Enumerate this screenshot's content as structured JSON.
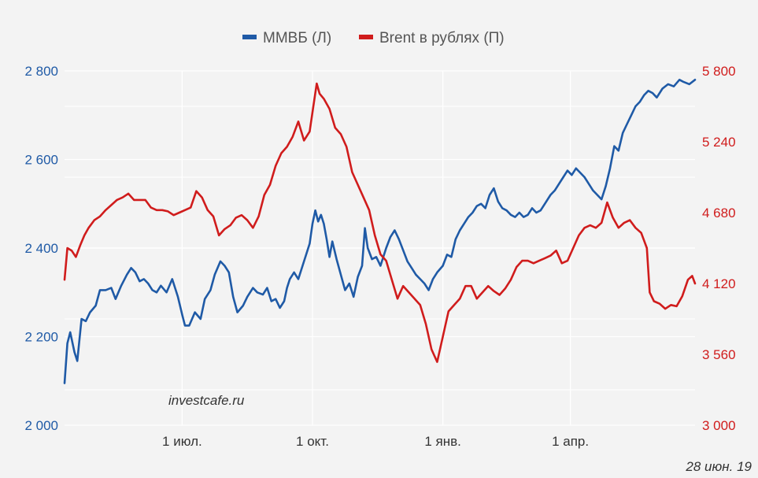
{
  "chart_data": {
    "type": "line",
    "legend_position": "top-center",
    "grid": true,
    "colors": {
      "left": "#1f5aa6",
      "right": "#d01c1c",
      "background": "#f3f3f3",
      "grid": "#ffffff"
    },
    "left_axis": {
      "ylim": [
        2000,
        2800
      ],
      "ticks": [
        2000,
        2200,
        2400,
        2600,
        2800
      ],
      "tick_labels": [
        "2 000",
        "2 200",
        "2 400",
        "2 600",
        "2 800"
      ]
    },
    "right_axis": {
      "ylim": [
        3000,
        5800
      ],
      "ticks": [
        3000,
        3560,
        4120,
        4680,
        5240,
        5800
      ],
      "tick_labels": [
        "3 000",
        "3 560",
        "4 120",
        "4 680",
        "5 240",
        "5 800"
      ]
    },
    "x_ticks": [
      {
        "label": "1 июл.",
        "date": "2018-07-01"
      },
      {
        "label": "1 окт.",
        "date": "2018-10-01"
      },
      {
        "label": "1 янв.",
        "date": "2019-01-01"
      },
      {
        "label": "1 апр.",
        "date": "2019-04-01"
      }
    ],
    "xlim": [
      "2018-04-09",
      "2019-06-28"
    ],
    "watermark": "investcafe.ru",
    "date_note": "28 июн. 19",
    "series": [
      {
        "name": "ММВБ (Л)",
        "axis": "left",
        "points": [
          [
            "2018-04-09",
            2095
          ],
          [
            "2018-04-11",
            2185
          ],
          [
            "2018-04-13",
            2210
          ],
          [
            "2018-04-16",
            2165
          ],
          [
            "2018-04-18",
            2145
          ],
          [
            "2018-04-21",
            2240
          ],
          [
            "2018-04-24",
            2235
          ],
          [
            "2018-04-27",
            2255
          ],
          [
            "2018-05-01",
            2270
          ],
          [
            "2018-05-04",
            2305
          ],
          [
            "2018-05-08",
            2305
          ],
          [
            "2018-05-12",
            2310
          ],
          [
            "2018-05-15",
            2285
          ],
          [
            "2018-05-19",
            2315
          ],
          [
            "2018-05-23",
            2340
          ],
          [
            "2018-05-26",
            2355
          ],
          [
            "2018-05-29",
            2345
          ],
          [
            "2018-06-01",
            2325
          ],
          [
            "2018-06-04",
            2330
          ],
          [
            "2018-06-07",
            2320
          ],
          [
            "2018-06-10",
            2305
          ],
          [
            "2018-06-13",
            2300
          ],
          [
            "2018-06-16",
            2315
          ],
          [
            "2018-06-20",
            2300
          ],
          [
            "2018-06-24",
            2330
          ],
          [
            "2018-06-28",
            2290
          ],
          [
            "2018-07-01",
            2250
          ],
          [
            "2018-07-03",
            2225
          ],
          [
            "2018-07-06",
            2225
          ],
          [
            "2018-07-10",
            2255
          ],
          [
            "2018-07-14",
            2240
          ],
          [
            "2018-07-17",
            2285
          ],
          [
            "2018-07-21",
            2305
          ],
          [
            "2018-07-24",
            2340
          ],
          [
            "2018-07-28",
            2370
          ],
          [
            "2018-07-31",
            2360
          ],
          [
            "2018-08-03",
            2345
          ],
          [
            "2018-08-06",
            2290
          ],
          [
            "2018-08-09",
            2255
          ],
          [
            "2018-08-13",
            2270
          ],
          [
            "2018-08-16",
            2290
          ],
          [
            "2018-08-20",
            2310
          ],
          [
            "2018-08-23",
            2300
          ],
          [
            "2018-08-27",
            2295
          ],
          [
            "2018-08-30",
            2310
          ],
          [
            "2018-09-02",
            2280
          ],
          [
            "2018-09-05",
            2285
          ],
          [
            "2018-09-08",
            2265
          ],
          [
            "2018-09-11",
            2280
          ],
          [
            "2018-09-13",
            2310
          ],
          [
            "2018-09-15",
            2330
          ],
          [
            "2018-09-18",
            2345
          ],
          [
            "2018-09-21",
            2330
          ],
          [
            "2018-09-24",
            2360
          ],
          [
            "2018-09-27",
            2390
          ],
          [
            "2018-09-29",
            2410
          ],
          [
            "2018-10-01",
            2455
          ],
          [
            "2018-10-03",
            2485
          ],
          [
            "2018-10-05",
            2460
          ],
          [
            "2018-10-07",
            2475
          ],
          [
            "2018-10-09",
            2455
          ],
          [
            "2018-10-11",
            2420
          ],
          [
            "2018-10-13",
            2380
          ],
          [
            "2018-10-15",
            2415
          ],
          [
            "2018-10-18",
            2375
          ],
          [
            "2018-10-21",
            2340
          ],
          [
            "2018-10-24",
            2305
          ],
          [
            "2018-10-27",
            2320
          ],
          [
            "2018-10-30",
            2290
          ],
          [
            "2018-11-02",
            2335
          ],
          [
            "2018-11-05",
            2360
          ],
          [
            "2018-11-07",
            2445
          ],
          [
            "2018-11-09",
            2400
          ],
          [
            "2018-11-12",
            2375
          ],
          [
            "2018-11-15",
            2380
          ],
          [
            "2018-11-18",
            2360
          ],
          [
            "2018-11-22",
            2400
          ],
          [
            "2018-11-25",
            2425
          ],
          [
            "2018-11-28",
            2440
          ],
          [
            "2018-12-01",
            2420
          ],
          [
            "2018-12-04",
            2395
          ],
          [
            "2018-12-07",
            2370
          ],
          [
            "2018-12-10",
            2355
          ],
          [
            "2018-12-13",
            2340
          ],
          [
            "2018-12-16",
            2330
          ],
          [
            "2018-12-19",
            2320
          ],
          [
            "2018-12-22",
            2305
          ],
          [
            "2018-12-25",
            2330
          ],
          [
            "2018-12-28",
            2345
          ],
          [
            "2019-01-01",
            2360
          ],
          [
            "2019-01-04",
            2385
          ],
          [
            "2019-01-07",
            2380
          ],
          [
            "2019-01-10",
            2420
          ],
          [
            "2019-01-13",
            2440
          ],
          [
            "2019-01-16",
            2455
          ],
          [
            "2019-01-19",
            2470
          ],
          [
            "2019-01-22",
            2480
          ],
          [
            "2019-01-25",
            2495
          ],
          [
            "2019-01-28",
            2500
          ],
          [
            "2019-01-31",
            2490
          ],
          [
            "2019-02-03",
            2520
          ],
          [
            "2019-02-06",
            2535
          ],
          [
            "2019-02-09",
            2505
          ],
          [
            "2019-02-12",
            2490
          ],
          [
            "2019-02-15",
            2485
          ],
          [
            "2019-02-18",
            2475
          ],
          [
            "2019-02-21",
            2470
          ],
          [
            "2019-02-24",
            2480
          ],
          [
            "2019-02-27",
            2470
          ],
          [
            "2019-03-02",
            2475
          ],
          [
            "2019-03-05",
            2490
          ],
          [
            "2019-03-08",
            2480
          ],
          [
            "2019-03-11",
            2485
          ],
          [
            "2019-03-14",
            2500
          ],
          [
            "2019-03-18",
            2520
          ],
          [
            "2019-03-21",
            2530
          ],
          [
            "2019-03-24",
            2545
          ],
          [
            "2019-03-27",
            2560
          ],
          [
            "2019-03-30",
            2575
          ],
          [
            "2019-04-02",
            2565
          ],
          [
            "2019-04-05",
            2580
          ],
          [
            "2019-04-08",
            2570
          ],
          [
            "2019-04-11",
            2560
          ],
          [
            "2019-04-14",
            2545
          ],
          [
            "2019-04-17",
            2530
          ],
          [
            "2019-04-20",
            2520
          ],
          [
            "2019-04-23",
            2510
          ],
          [
            "2019-04-26",
            2540
          ],
          [
            "2019-04-29",
            2580
          ],
          [
            "2019-05-02",
            2630
          ],
          [
            "2019-05-05",
            2620
          ],
          [
            "2019-05-08",
            2660
          ],
          [
            "2019-05-11",
            2680
          ],
          [
            "2019-05-14",
            2700
          ],
          [
            "2019-05-17",
            2720
          ],
          [
            "2019-05-20",
            2730
          ],
          [
            "2019-05-23",
            2745
          ],
          [
            "2019-05-26",
            2755
          ],
          [
            "2019-05-29",
            2750
          ],
          [
            "2019-06-01",
            2740
          ],
          [
            "2019-06-05",
            2760
          ],
          [
            "2019-06-09",
            2770
          ],
          [
            "2019-06-13",
            2765
          ],
          [
            "2019-06-17",
            2780
          ],
          [
            "2019-06-20",
            2775
          ],
          [
            "2019-06-24",
            2770
          ],
          [
            "2019-06-28",
            2780
          ]
        ]
      },
      {
        "name": "Brent в рублях (П)",
        "axis": "right",
        "points": [
          [
            "2018-04-09",
            4150
          ],
          [
            "2018-04-11",
            4400
          ],
          [
            "2018-04-14",
            4380
          ],
          [
            "2018-04-17",
            4330
          ],
          [
            "2018-04-20",
            4420
          ],
          [
            "2018-04-23",
            4500
          ],
          [
            "2018-04-26",
            4560
          ],
          [
            "2018-04-30",
            4620
          ],
          [
            "2018-05-04",
            4650
          ],
          [
            "2018-05-08",
            4700
          ],
          [
            "2018-05-12",
            4740
          ],
          [
            "2018-05-16",
            4780
          ],
          [
            "2018-05-20",
            4800
          ],
          [
            "2018-05-24",
            4830
          ],
          [
            "2018-05-28",
            4780
          ],
          [
            "2018-06-01",
            4780
          ],
          [
            "2018-06-05",
            4780
          ],
          [
            "2018-06-09",
            4720
          ],
          [
            "2018-06-13",
            4700
          ],
          [
            "2018-06-17",
            4700
          ],
          [
            "2018-06-21",
            4690
          ],
          [
            "2018-06-25",
            4660
          ],
          [
            "2018-06-29",
            4680
          ],
          [
            "2018-07-03",
            4700
          ],
          [
            "2018-07-07",
            4720
          ],
          [
            "2018-07-11",
            4850
          ],
          [
            "2018-07-15",
            4800
          ],
          [
            "2018-07-19",
            4700
          ],
          [
            "2018-07-23",
            4650
          ],
          [
            "2018-07-27",
            4500
          ],
          [
            "2018-07-31",
            4550
          ],
          [
            "2018-08-04",
            4580
          ],
          [
            "2018-08-08",
            4640
          ],
          [
            "2018-08-12",
            4660
          ],
          [
            "2018-08-16",
            4620
          ],
          [
            "2018-08-20",
            4560
          ],
          [
            "2018-08-24",
            4650
          ],
          [
            "2018-08-28",
            4820
          ],
          [
            "2018-09-01",
            4900
          ],
          [
            "2018-09-05",
            5050
          ],
          [
            "2018-09-09",
            5150
          ],
          [
            "2018-09-13",
            5200
          ],
          [
            "2018-09-17",
            5280
          ],
          [
            "2018-09-21",
            5400
          ],
          [
            "2018-09-25",
            5250
          ],
          [
            "2018-09-29",
            5320
          ],
          [
            "2018-10-02",
            5550
          ],
          [
            "2018-10-04",
            5700
          ],
          [
            "2018-10-06",
            5620
          ],
          [
            "2018-10-09",
            5580
          ],
          [
            "2018-10-13",
            5500
          ],
          [
            "2018-10-17",
            5350
          ],
          [
            "2018-10-21",
            5300
          ],
          [
            "2018-10-25",
            5200
          ],
          [
            "2018-10-29",
            5000
          ],
          [
            "2018-11-02",
            4900
          ],
          [
            "2018-11-06",
            4800
          ],
          [
            "2018-11-10",
            4700
          ],
          [
            "2018-11-14",
            4500
          ],
          [
            "2018-11-18",
            4350
          ],
          [
            "2018-11-22",
            4300
          ],
          [
            "2018-11-26",
            4150
          ],
          [
            "2018-11-30",
            4000
          ],
          [
            "2018-12-04",
            4100
          ],
          [
            "2018-12-08",
            4050
          ],
          [
            "2018-12-12",
            4000
          ],
          [
            "2018-12-16",
            3950
          ],
          [
            "2018-12-20",
            3800
          ],
          [
            "2018-12-24",
            3600
          ],
          [
            "2018-12-28",
            3500
          ],
          [
            "2019-01-01",
            3700
          ],
          [
            "2019-01-05",
            3900
          ],
          [
            "2019-01-09",
            3950
          ],
          [
            "2019-01-13",
            4000
          ],
          [
            "2019-01-17",
            4100
          ],
          [
            "2019-01-21",
            4100
          ],
          [
            "2019-01-25",
            4000
          ],
          [
            "2019-01-29",
            4050
          ],
          [
            "2019-02-02",
            4100
          ],
          [
            "2019-02-06",
            4060
          ],
          [
            "2019-02-10",
            4030
          ],
          [
            "2019-02-14",
            4080
          ],
          [
            "2019-02-18",
            4150
          ],
          [
            "2019-02-22",
            4250
          ],
          [
            "2019-02-26",
            4300
          ],
          [
            "2019-03-02",
            4300
          ],
          [
            "2019-03-06",
            4280
          ],
          [
            "2019-03-10",
            4300
          ],
          [
            "2019-03-14",
            4320
          ],
          [
            "2019-03-18",
            4340
          ],
          [
            "2019-03-22",
            4380
          ],
          [
            "2019-03-26",
            4280
          ],
          [
            "2019-03-30",
            4300
          ],
          [
            "2019-04-03",
            4400
          ],
          [
            "2019-04-07",
            4500
          ],
          [
            "2019-04-11",
            4560
          ],
          [
            "2019-04-15",
            4580
          ],
          [
            "2019-04-19",
            4560
          ],
          [
            "2019-04-23",
            4600
          ],
          [
            "2019-04-27",
            4760
          ],
          [
            "2019-05-01",
            4640
          ],
          [
            "2019-05-05",
            4560
          ],
          [
            "2019-05-09",
            4600
          ],
          [
            "2019-05-13",
            4620
          ],
          [
            "2019-05-17",
            4560
          ],
          [
            "2019-05-21",
            4520
          ],
          [
            "2019-05-25",
            4400
          ],
          [
            "2019-05-27",
            4050
          ],
          [
            "2019-05-30",
            3980
          ],
          [
            "2019-06-03",
            3960
          ],
          [
            "2019-06-07",
            3920
          ],
          [
            "2019-06-11",
            3950
          ],
          [
            "2019-06-15",
            3940
          ],
          [
            "2019-06-19",
            4020
          ],
          [
            "2019-06-23",
            4150
          ],
          [
            "2019-06-26",
            4180
          ],
          [
            "2019-06-28",
            4120
          ]
        ]
      }
    ]
  }
}
